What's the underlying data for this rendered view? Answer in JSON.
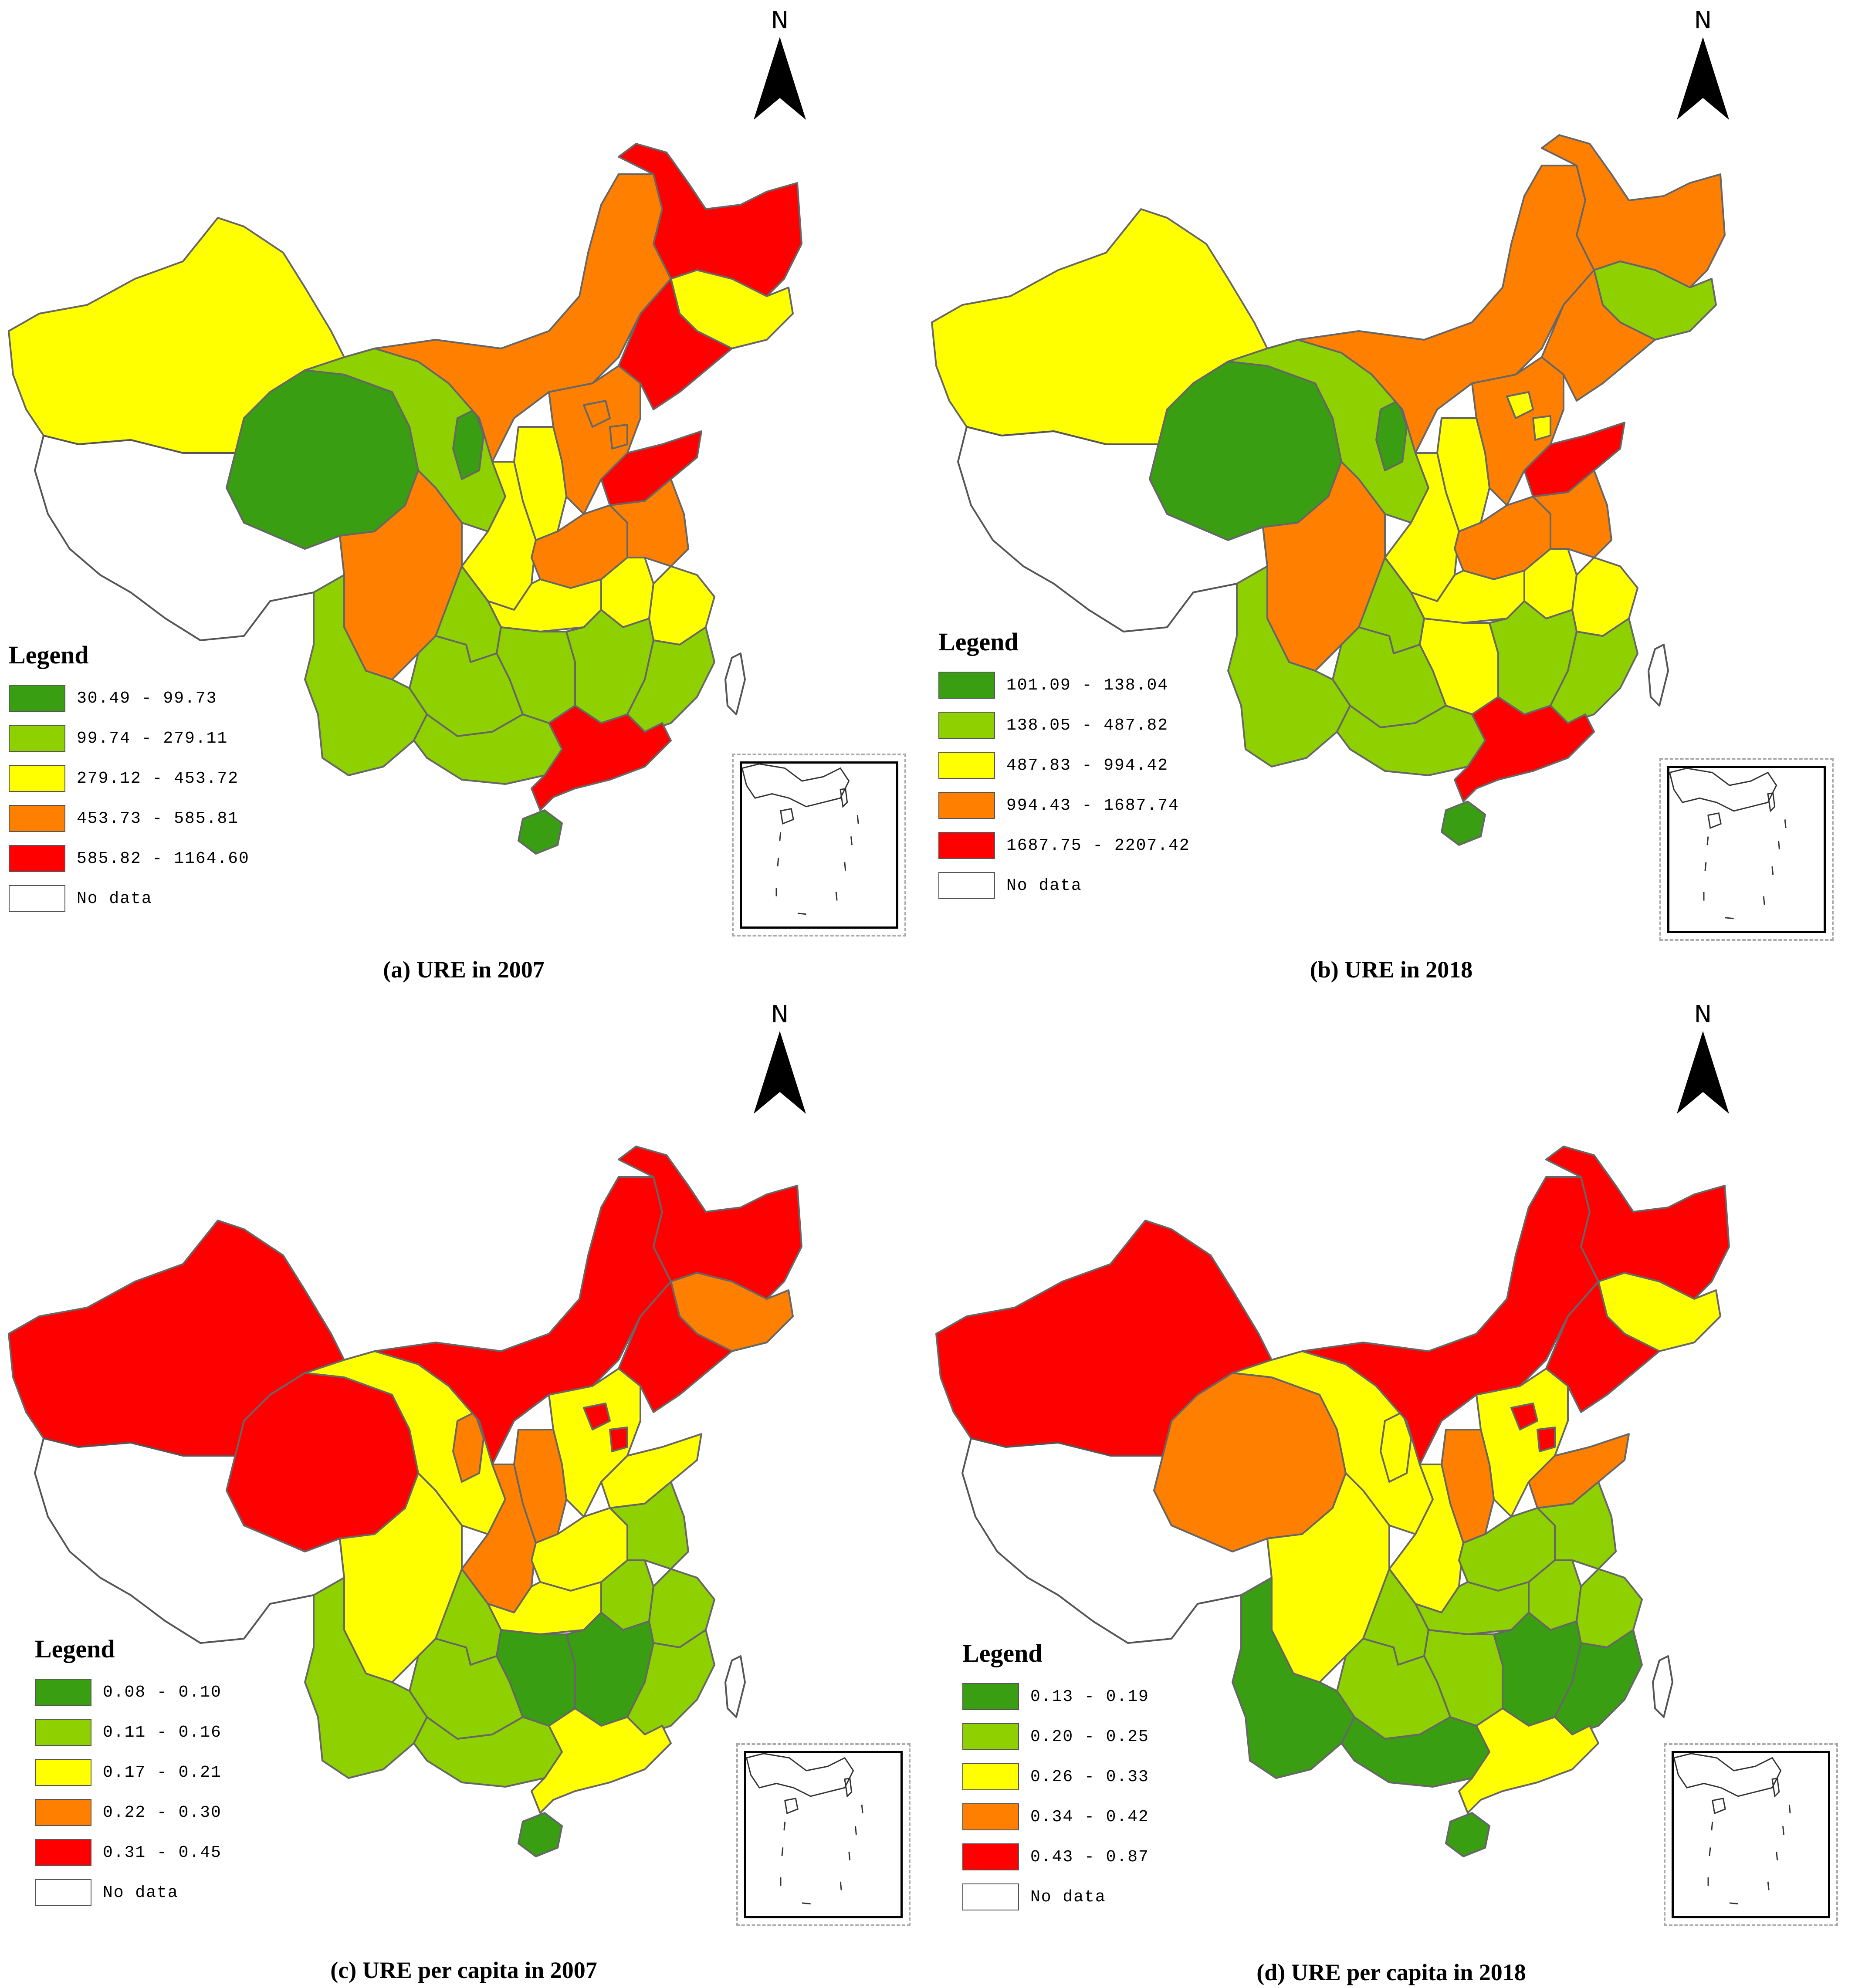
{
  "colors": {
    "dark_green": "#3a9e12",
    "light_green": "#8fd100",
    "yellow": "#ffff00",
    "orange": "#ff8000",
    "red": "#ff0000",
    "no_data": "#ffffff",
    "border": "#666666"
  },
  "north_label": "N",
  "legend_title": "Legend",
  "no_data_label": "No data",
  "panels": [
    {
      "caption": "(a) URE in 2007",
      "classes": [
        "30.49 - 99.73",
        "99.74 - 279.11",
        "279.12 - 453.72",
        "453.73 - 585.81",
        "585.82 - 1164.60"
      ],
      "regions": {
        "xinjiang": "yellow",
        "tibet": "no_data",
        "qinghai": "dark_green",
        "gansu": "light_green",
        "ningxia": "dark_green",
        "inner_mongolia": "orange",
        "heilongjiang": "red",
        "jilin": "yellow",
        "liaoning": "red",
        "hebei": "orange",
        "beijing": "orange",
        "tianjin": "orange",
        "shandong": "red",
        "shanxi": "yellow",
        "shaanxi": "yellow",
        "henan": "orange",
        "jiangsu": "orange",
        "anhui": "yellow",
        "zhejiang": "yellow",
        "hubei": "yellow",
        "sichuan": "orange",
        "chongqing": "light_green",
        "hunan": "light_green",
        "jiangxi": "light_green",
        "fujian": "light_green",
        "guizhou": "light_green",
        "yunnan": "light_green",
        "guangxi": "light_green",
        "guangdong": "red",
        "hainan": "dark_green"
      }
    },
    {
      "caption": "(b) URE in 2018",
      "classes": [
        "101.09 - 138.04",
        "138.05 - 487.82",
        "487.83 - 994.42",
        "994.43 - 1687.74",
        "1687.75 - 2207.42"
      ],
      "regions": {
        "xinjiang": "yellow",
        "tibet": "no_data",
        "qinghai": "dark_green",
        "gansu": "light_green",
        "ningxia": "dark_green",
        "inner_mongolia": "orange",
        "heilongjiang": "orange",
        "jilin": "light_green",
        "liaoning": "orange",
        "hebei": "orange",
        "beijing": "yellow",
        "tianjin": "yellow",
        "shandong": "red",
        "shanxi": "yellow",
        "shaanxi": "yellow",
        "henan": "orange",
        "jiangsu": "orange",
        "anhui": "yellow",
        "zhejiang": "yellow",
        "hubei": "yellow",
        "sichuan": "orange",
        "chongqing": "light_green",
        "hunan": "yellow",
        "jiangxi": "light_green",
        "fujian": "light_green",
        "guizhou": "light_green",
        "yunnan": "light_green",
        "guangxi": "light_green",
        "guangdong": "red",
        "hainan": "dark_green"
      }
    },
    {
      "caption": "(c) URE per capita in 2007",
      "classes": [
        "0.08 - 0.10",
        "0.11 - 0.16",
        "0.17 - 0.21",
        "0.22 - 0.30",
        "0.31 - 0.45"
      ],
      "regions": {
        "xinjiang": "red",
        "tibet": "no_data",
        "qinghai": "red",
        "gansu": "yellow",
        "ningxia": "orange",
        "inner_mongolia": "red",
        "heilongjiang": "red",
        "jilin": "orange",
        "liaoning": "red",
        "hebei": "yellow",
        "beijing": "red",
        "tianjin": "red",
        "shandong": "yellow",
        "shanxi": "orange",
        "shaanxi": "orange",
        "henan": "yellow",
        "jiangsu": "light_green",
        "anhui": "light_green",
        "zhejiang": "light_green",
        "hubei": "yellow",
        "sichuan": "yellow",
        "chongqing": "light_green",
        "hunan": "dark_green",
        "jiangxi": "dark_green",
        "fujian": "light_green",
        "guizhou": "light_green",
        "yunnan": "light_green",
        "guangxi": "light_green",
        "guangdong": "yellow",
        "hainan": "dark_green"
      }
    },
    {
      "caption": "(d) URE per capita in 2018",
      "classes": [
        "0.13 - 0.19",
        "0.20 - 0.25",
        "0.26 - 0.33",
        "0.34 - 0.42",
        "0.43 - 0.87"
      ],
      "regions": {
        "xinjiang": "red",
        "tibet": "no_data",
        "qinghai": "orange",
        "gansu": "yellow",
        "ningxia": "yellow",
        "inner_mongolia": "red",
        "heilongjiang": "red",
        "jilin": "yellow",
        "liaoning": "red",
        "hebei": "yellow",
        "beijing": "red",
        "tianjin": "red",
        "shandong": "orange",
        "shanxi": "orange",
        "shaanxi": "yellow",
        "henan": "light_green",
        "jiangsu": "light_green",
        "anhui": "light_green",
        "zhejiang": "light_green",
        "hubei": "light_green",
        "sichuan": "yellow",
        "chongqing": "light_green",
        "hunan": "light_green",
        "jiangxi": "dark_green",
        "fujian": "dark_green",
        "guizhou": "light_green",
        "yunnan": "dark_green",
        "guangxi": "dark_green",
        "guangdong": "yellow",
        "hainan": "dark_green"
      }
    }
  ]
}
